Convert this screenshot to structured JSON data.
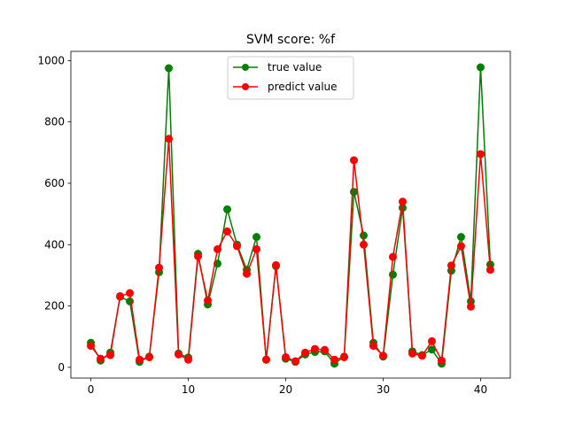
{
  "chart_data": {
    "type": "line",
    "title": "SVM score: %f",
    "xlabel": "",
    "ylabel": "",
    "xlim": [
      -2.05,
      43.05
    ],
    "ylim": [
      -35,
      1030
    ],
    "x_ticks": [
      0,
      10,
      20,
      30,
      40
    ],
    "y_ticks": [
      0,
      200,
      400,
      600,
      800,
      1000
    ],
    "grid": false,
    "legend_position": "top-center",
    "x": [
      0,
      1,
      2,
      3,
      4,
      5,
      6,
      7,
      8,
      9,
      10,
      11,
      12,
      13,
      14,
      15,
      16,
      17,
      18,
      19,
      20,
      21,
      22,
      23,
      24,
      25,
      26,
      27,
      28,
      29,
      30,
      31,
      32,
      33,
      34,
      35,
      36,
      37,
      38,
      39,
      40,
      41
    ],
    "series": [
      {
        "name": "true value",
        "color": "#008000",
        "values": [
          80,
          22,
          48,
          230,
          215,
          18,
          35,
          310,
          975,
          45,
          32,
          370,
          205,
          338,
          515,
          400,
          318,
          425,
          25,
          330,
          28,
          18,
          42,
          50,
          52,
          12,
          35,
          572,
          430,
          80,
          35,
          302,
          520,
          52,
          40,
          58,
          12,
          315,
          425,
          215,
          978,
          335
        ]
      },
      {
        "name": "predict value",
        "color": "#ff0000",
        "values": [
          70,
          28,
          40,
          232,
          242,
          25,
          33,
          325,
          745,
          42,
          25,
          362,
          218,
          385,
          443,
          395,
          305,
          385,
          25,
          333,
          33,
          20,
          48,
          60,
          57,
          25,
          33,
          675,
          400,
          70,
          38,
          360,
          540,
          45,
          38,
          85,
          22,
          332,
          395,
          198,
          695,
          318
        ]
      }
    ]
  }
}
